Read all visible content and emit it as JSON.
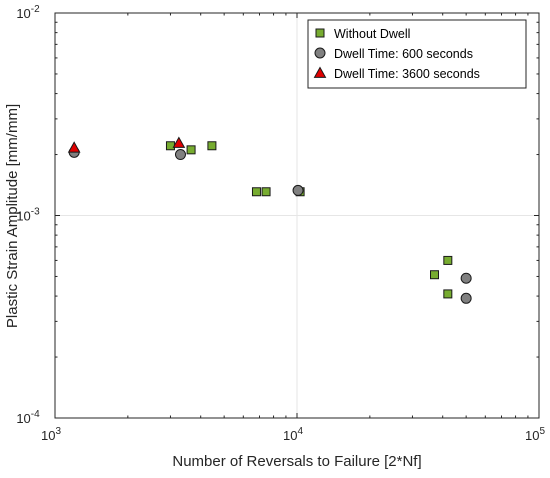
{
  "chart_data": {
    "type": "scatter",
    "xlabel": "Number of Reversals to Failure [2*Nf]",
    "ylabel": "Plastic Strain Amplitude [mm/mm]",
    "xscale": "log",
    "yscale": "log",
    "xlim": [
      1000,
      100000
    ],
    "ylim": [
      0.0001,
      0.01
    ],
    "x_ticks": [
      {
        "base": "10",
        "exp": "3",
        "value": 1000
      },
      {
        "base": "10",
        "exp": "4",
        "value": 10000
      },
      {
        "base": "10",
        "exp": "5",
        "value": 100000
      }
    ],
    "y_ticks": [
      {
        "base": "10",
        "exp": "-4",
        "value": 0.0001
      },
      {
        "base": "10",
        "exp": "-3",
        "value": 0.001
      },
      {
        "base": "10",
        "exp": "-2",
        "value": 0.01
      }
    ],
    "grid": true,
    "legend_position": "top-right",
    "series": [
      {
        "name": "Without Dwell",
        "marker": "square",
        "color": "#77AC30",
        "points": [
          [
            3000,
            0.00221
          ],
          [
            3650,
            0.00211
          ],
          [
            4450,
            0.00221
          ],
          [
            6800,
            0.00131
          ],
          [
            7450,
            0.00131
          ],
          [
            10300,
            0.00131
          ],
          [
            37000,
            0.00051
          ],
          [
            42000,
            0.0006
          ],
          [
            42000,
            0.00041
          ]
        ]
      },
      {
        "name": "Dwell Time: 600 seconds",
        "marker": "circle",
        "color": "#808080",
        "points": [
          [
            1200,
            0.00205
          ],
          [
            3300,
            0.002
          ],
          [
            10100,
            0.00133
          ],
          [
            50000,
            0.00049
          ],
          [
            50000,
            0.00039
          ]
        ]
      },
      {
        "name": "Dwell Time: 3600 seconds",
        "marker": "triangle",
        "color": "#E00000",
        "points": [
          [
            1200,
            0.00216
          ],
          [
            3250,
            0.00228
          ]
        ]
      }
    ]
  }
}
